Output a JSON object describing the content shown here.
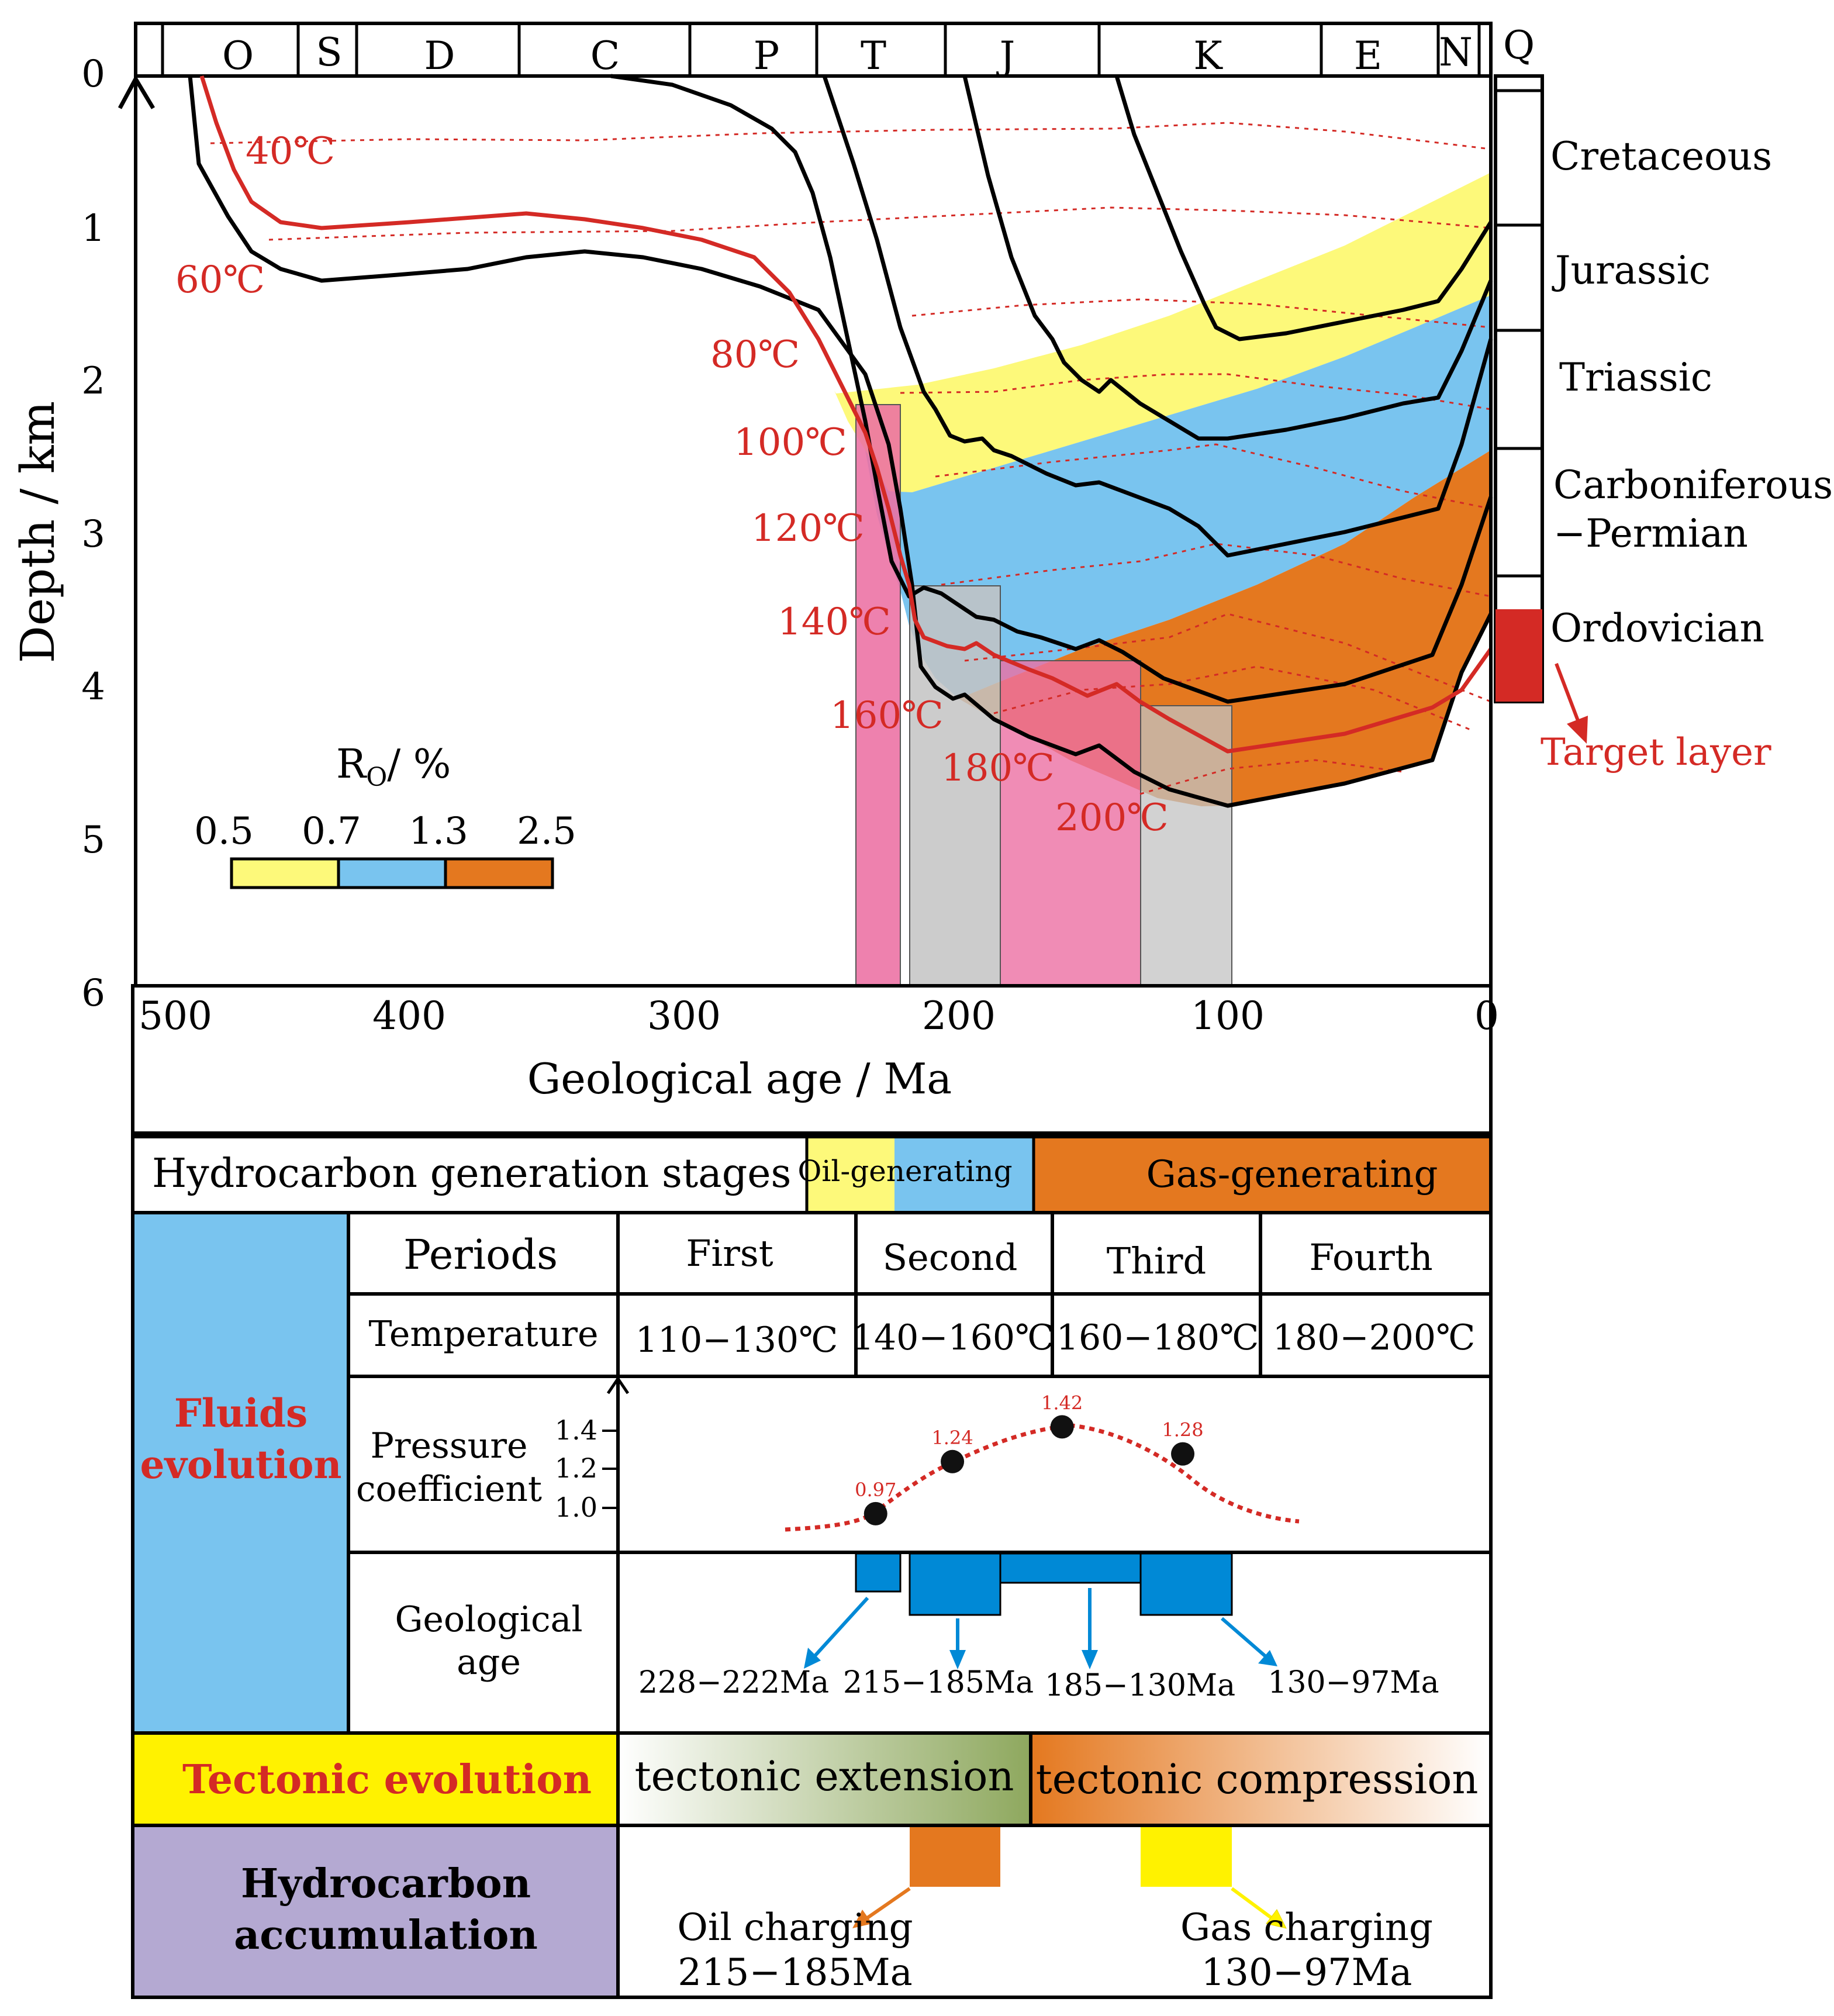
{
  "periods_bar": [
    "O",
    "S",
    "D",
    "C",
    "P",
    "T",
    "J",
    "K",
    "E",
    "N",
    "Q"
  ],
  "y_ticks": [
    "0",
    "1",
    "2",
    "3",
    "4",
    "5",
    "6"
  ],
  "x_ticks": [
    "500",
    "400",
    "300",
    "200",
    "100",
    "0"
  ],
  "ylabel": "Depth / km",
  "xlabel": "Geological age / Ma",
  "isotherm_labels": [
    "40℃",
    "60℃",
    "80℃",
    "100℃",
    "120℃",
    "140℃",
    "160℃",
    "180℃",
    "200℃"
  ],
  "strat_column": [
    "Cretaceous",
    "Jurassic",
    "Triassic",
    "Carboniferous",
    "−Permian",
    "Ordovician"
  ],
  "target_layer_label": "Target layer",
  "ro_legend": {
    "title": "RO/ %",
    "values": [
      "0.5",
      "0.7",
      "1.3",
      "2.5"
    ],
    "colors": [
      "#fdf97a",
      "#79c4ef",
      "#e4781f"
    ]
  },
  "stages": {
    "label": "Hydrocarbon generation stages",
    "oil": "Oil-generating",
    "gas": "Gas-generating"
  },
  "fluids": {
    "title_line1": "Fluids",
    "title_line2": "evolution",
    "periods_label": "Periods",
    "periods": [
      "First",
      "Second",
      "Third",
      "Fourth"
    ],
    "temperature_label": "Temperature",
    "temperatures": [
      "110−130℃",
      "140−160℃",
      "160−180℃",
      "180−200℃"
    ],
    "pressure_label_1": "Pressure",
    "pressure_label_2": "coefficient",
    "pressure_ticks": [
      "1.4",
      "1.2",
      "1.0"
    ],
    "pressure_points": [
      {
        "age_ma": 225,
        "value": 0.97,
        "label": "0.97"
      },
      {
        "age_ma": 197,
        "value": 1.24,
        "label": "1.24"
      },
      {
        "age_ma": 157,
        "value": 1.42,
        "label": "1.42"
      },
      {
        "age_ma": 113,
        "value": 1.28,
        "label": "1.28"
      }
    ],
    "geo_age_label_1": "Geological",
    "geo_age_label_2": "age",
    "geo_ages": [
      "228−222Ma",
      "215−185Ma",
      "185−130Ma",
      "130−97Ma"
    ]
  },
  "tectonic": {
    "title": "Tectonic evolution",
    "extension": "tectonic extension",
    "compression": "tectonic compression"
  },
  "accumulation": {
    "title_line1": "Hydrocarbon",
    "title_line2": "accumulation",
    "oil_line1": "Oil charging",
    "oil_line2": "215−185Ma",
    "gas_line1": "Gas charging",
    "gas_line2": "130−97Ma"
  },
  "colors": {
    "red": "#d42a25",
    "yellow_band": "#fdf97a",
    "blue_band": "#79c4ef",
    "orange_band": "#e4781f",
    "pink_box": "#ec6fa3",
    "gray_box": "#c3c3c3",
    "left_blue": "#79c4ef",
    "left_yellow": "#fff200",
    "left_purple": "#b4a9d2",
    "dark_blue": "#0089d6",
    "accum_orange": "#e4781f",
    "accum_yellow": "#fff200"
  }
}
